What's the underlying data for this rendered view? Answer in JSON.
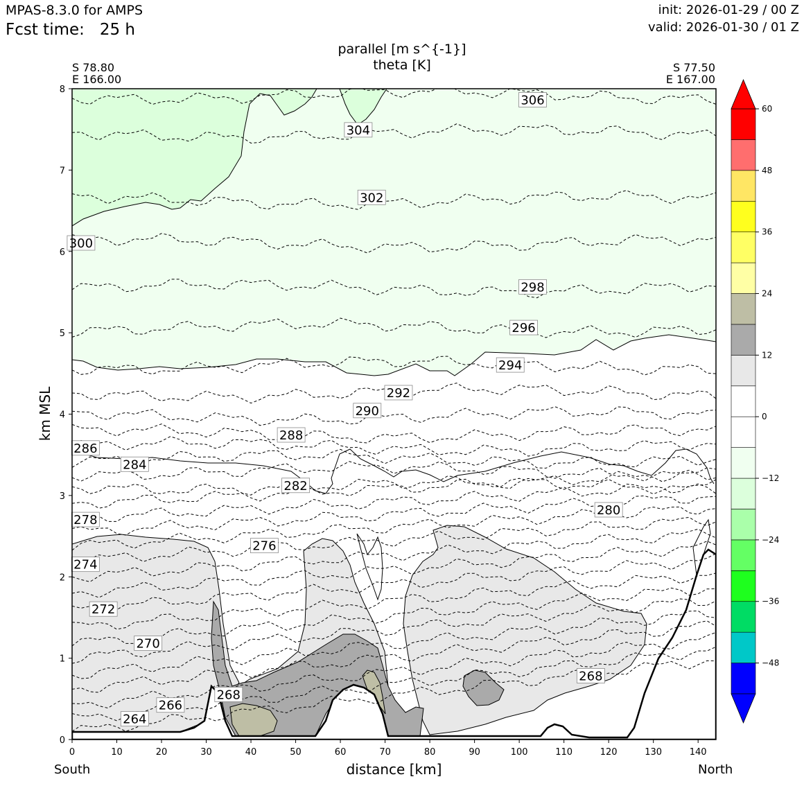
{
  "header": {
    "model": "MPAS-8.3.0 for AMPS",
    "fcst": "Fcst time:   25 h",
    "init": "init: 2026-01-29 / 00 Z",
    "valid": "valid: 2026-01-30 / 01 Z"
  },
  "plot": {
    "title1": "parallel [m s^{-1}]",
    "title2": "theta [K]",
    "left_lat": "S 78.80",
    "left_lon": "E 166.00",
    "right_lat": "S 77.50",
    "right_lon": "E 167.00",
    "xlabel": "distance [km]",
    "ylabel": "km MSL",
    "south": "South",
    "north": "North"
  },
  "chart_data": {
    "type": "cross-section (filled contours + isentropes)",
    "title": "parallel [m s^{-1}] / theta [K]",
    "x_range": [
      0,
      144
    ],
    "y_range": [
      0,
      8
    ],
    "x_ticks": [
      0,
      10,
      20,
      30,
      40,
      50,
      60,
      70,
      80,
      90,
      100,
      110,
      120,
      130,
      140
    ],
    "y_ticks": [
      0,
      1,
      2,
      3,
      4,
      5,
      6,
      7,
      8
    ],
    "colorbar": {
      "levels": [
        -54,
        -48,
        -42,
        -36,
        -30,
        -24,
        -18,
        -12,
        -6,
        0,
        6,
        12,
        18,
        24,
        30,
        36,
        42,
        48,
        54,
        60
      ],
      "tick_labels": [
        "60",
        "48",
        "36",
        "24",
        "12",
        "0",
        "−12",
        "−24",
        "−36",
        "−48"
      ],
      "tick_values": [
        60,
        48,
        36,
        24,
        12,
        0,
        -12,
        -24,
        -36,
        -48
      ],
      "colors": [
        "#0000ff",
        "#00c8c8",
        "#00dc64",
        "#1eff1e",
        "#64ff64",
        "#aaffaa",
        "#dcffdc",
        "#f0fff0",
        "#ffffff",
        "#ffffff",
        "#e8e8e8",
        "#aaaaaa",
        "#bebea5",
        "#ffffa5",
        "#ffff64",
        "#ffff1e",
        "#ffe664",
        "#ff6e6e",
        "#ff0000"
      ],
      "extend_low": "#0000ff",
      "extend_high": "#ff0000"
    },
    "theta_labels": [
      {
        "value": "264",
        "x": 14,
        "y": 0.25
      },
      {
        "value": "266",
        "x": 22,
        "y": 0.42
      },
      {
        "value": "268",
        "x": 35,
        "y": 0.55
      },
      {
        "value": "268",
        "x": 116,
        "y": 0.78
      },
      {
        "value": "270",
        "x": 17,
        "y": 1.18
      },
      {
        "value": "272",
        "x": 7,
        "y": 1.6
      },
      {
        "value": "274",
        "x": 3,
        "y": 2.15
      },
      {
        "value": "276",
        "x": 43,
        "y": 2.38
      },
      {
        "value": "278",
        "x": 3,
        "y": 2.7
      },
      {
        "value": "280",
        "x": 120,
        "y": 2.82
      },
      {
        "value": "282",
        "x": 50,
        "y": 3.12
      },
      {
        "value": "284",
        "x": 14,
        "y": 3.38
      },
      {
        "value": "286",
        "x": 3,
        "y": 3.58
      },
      {
        "value": "288",
        "x": 49,
        "y": 3.74
      },
      {
        "value": "290",
        "x": 66,
        "y": 4.04
      },
      {
        "value": "292",
        "x": 73,
        "y": 4.26
      },
      {
        "value": "294",
        "x": 98,
        "y": 4.6
      },
      {
        "value": "296",
        "x": 101,
        "y": 5.06
      },
      {
        "value": "298",
        "x": 103,
        "y": 5.56
      },
      {
        "value": "300",
        "x": 2,
        "y": 6.1
      },
      {
        "value": "302",
        "x": 67,
        "y": 6.66
      },
      {
        "value": "304",
        "x": 64,
        "y": 7.49
      },
      {
        "value": "306",
        "x": 103,
        "y": 7.86
      }
    ]
  }
}
